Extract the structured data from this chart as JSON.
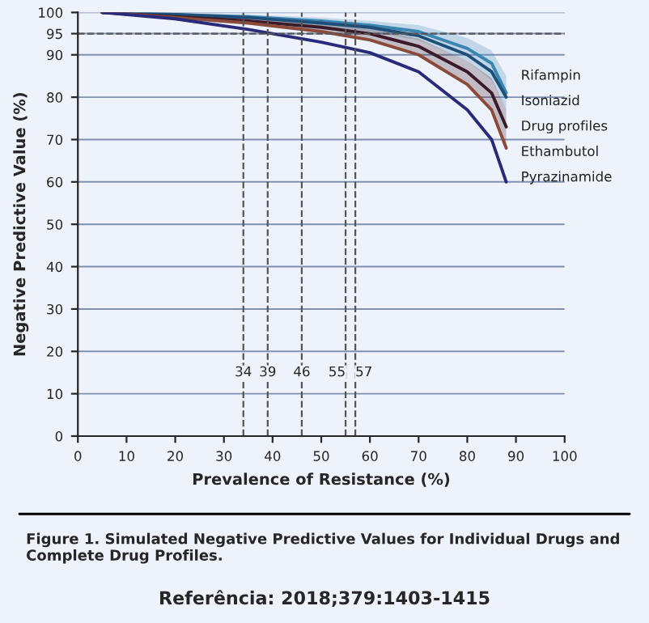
{
  "chart_data": {
    "type": "line",
    "xlabel": "Prevalence of Resistance (%)",
    "ylabel": "Negative Predictive Value (%)",
    "x": [
      5,
      20,
      35,
      50,
      60,
      70,
      80,
      85,
      88
    ],
    "series": [
      {
        "name": "Rifampin",
        "color": "#3a86b0",
        "values": [
          100,
          99.5,
          99,
          98,
          97,
          95.5,
          91.5,
          88,
          81
        ],
        "lower": [
          100,
          99.2,
          98.3,
          96.8,
          95.5,
          93.5,
          88.5,
          84,
          77
        ],
        "upper": [
          100,
          99.8,
          99.5,
          98.8,
          98,
          97,
          94,
          91,
          85
        ]
      },
      {
        "name": "Isoniazid",
        "color": "#1f4e79",
        "values": [
          100,
          99.5,
          98.8,
          97.5,
          96.5,
          94.5,
          90,
          86,
          80
        ]
      },
      {
        "name": "Drug profiles",
        "color": "#3b1a2a",
        "values": [
          100,
          99,
          98,
          96.5,
          95,
          92,
          86,
          81,
          73
        ],
        "lower": [
          100,
          98.7,
          97.3,
          95.5,
          93.5,
          90,
          83,
          77,
          68
        ],
        "upper": [
          100,
          99.3,
          98.6,
          97.3,
          96.2,
          93.8,
          88.5,
          84.5,
          77
        ]
      },
      {
        "name": "Ethambutol",
        "color": "#8b4a3a",
        "values": [
          100,
          98.8,
          97.5,
          95.5,
          93.5,
          90,
          83,
          77,
          68
        ]
      },
      {
        "name": "Pyrazinamide",
        "color": "#2a2a7a",
        "values": [
          100,
          98.5,
          96,
          93,
          90.5,
          86,
          77,
          70,
          60
        ]
      }
    ],
    "xlim": [
      0,
      100
    ],
    "xticks": [
      0,
      10,
      20,
      30,
      40,
      50,
      60,
      70,
      80,
      90,
      100
    ],
    "ylim": [
      0,
      100
    ],
    "yticks": [
      0,
      10,
      20,
      30,
      40,
      50,
      60,
      70,
      80,
      90,
      95,
      100
    ],
    "ref_lines": [
      {
        "axis": "y",
        "value": 95,
        "line_style": "dashed",
        "color": "#555555"
      },
      {
        "axis": "x",
        "value": 34,
        "label": "34",
        "line_style": "dashed",
        "color": "#555555"
      },
      {
        "axis": "x",
        "value": 39,
        "label": "39",
        "line_style": "dashed",
        "color": "#555555"
      },
      {
        "axis": "x",
        "value": 46,
        "label": "46",
        "line_style": "dashed",
        "color": "#555555"
      },
      {
        "axis": "x",
        "value": 55,
        "label": "55",
        "line_style": "dashed",
        "color": "#555555"
      },
      {
        "axis": "x",
        "value": 57,
        "label": "57",
        "line_style": "dashed",
        "color": "#555555"
      }
    ],
    "grid": "y",
    "legend": "right",
    "marker": "none",
    "line_style": "solid",
    "annotations": [
      "Figure 1. Simulated Negative Predictive Values for Individual Drugs and Complete Drug Profiles.",
      "Referência: 2018;379:1403-1415"
    ]
  }
}
